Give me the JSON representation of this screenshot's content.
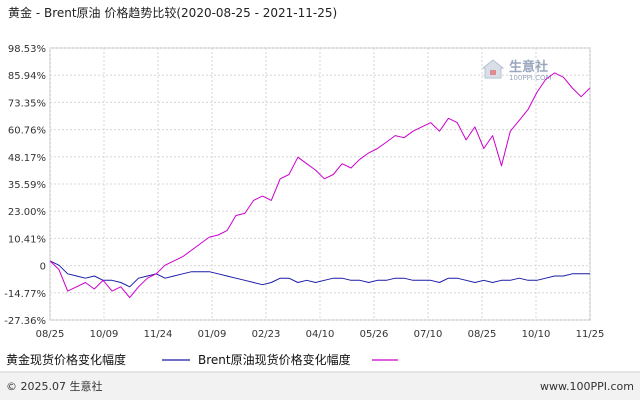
{
  "chart_data": {
    "type": "line",
    "title": "黄金 - Brent原油 价格趋势比较(2020-08-25 - 2021-11-25)",
    "xlabel": "",
    "ylabel": "",
    "x_ticks": [
      "08/25",
      "10/09",
      "11/24",
      "01/09",
      "02/23",
      "04/10",
      "05/26",
      "07/10",
      "08/25",
      "10/10",
      "11/25"
    ],
    "y_ticks": [
      "98.53%",
      "85.94%",
      "73.35%",
      "60.76%",
      "48.17%",
      "35.59%",
      "23.00%",
      "10.41%",
      "0",
      "-14.77%",
      "-27.36%"
    ],
    "ylim": [
      -27.36,
      98.53
    ],
    "grid": true,
    "legend_position": "bottom",
    "series": [
      {
        "name": "黄金现货价格变化幅度",
        "color": "#1b1ba8",
        "values": [
          0,
          -2,
          -6,
          -7,
          -8,
          -7,
          -9,
          -9,
          -10,
          -12,
          -8,
          -7,
          -6,
          -8,
          -7,
          -6,
          -5,
          -5,
          -5,
          -6,
          -7,
          -8,
          -9,
          -10,
          -11,
          -10,
          -8,
          -8,
          -10,
          -9,
          -10,
          -9,
          -8,
          -8,
          -9,
          -9,
          -10,
          -9,
          -9,
          -8,
          -8,
          -9,
          -9,
          -9,
          -10,
          -8,
          -8,
          -9,
          -10,
          -9,
          -10,
          -9,
          -9,
          -8,
          -9,
          -9,
          -8,
          -7,
          -7,
          -6,
          -6,
          -6
        ]
      },
      {
        "name": "Brent原油现货价格变化幅度",
        "color": "#cc00cc",
        "values": [
          0,
          -4,
          -14,
          -12,
          -10,
          -13,
          -9,
          -14,
          -12,
          -17,
          -12,
          -8,
          -6,
          -2,
          0,
          2,
          5,
          8,
          11,
          12,
          14,
          21,
          22,
          28,
          30,
          28,
          38,
          40,
          48,
          45,
          42,
          38,
          40,
          45,
          43,
          47,
          50,
          52,
          55,
          58,
          57,
          60,
          62,
          64,
          60,
          66,
          64,
          56,
          62,
          52,
          58,
          44,
          60,
          65,
          70,
          78,
          84,
          87,
          85,
          80,
          76,
          80
        ]
      }
    ]
  },
  "legend": {
    "gold_label": "黄金现货价格变化幅度",
    "brent_label": "Brent原油现货价格变化幅度"
  },
  "footer": {
    "copyright": "© 2025.07 生意社",
    "url": "www.100PPI.com"
  },
  "watermark": {
    "name": "生意社",
    "sub": "100PPI.COM"
  }
}
